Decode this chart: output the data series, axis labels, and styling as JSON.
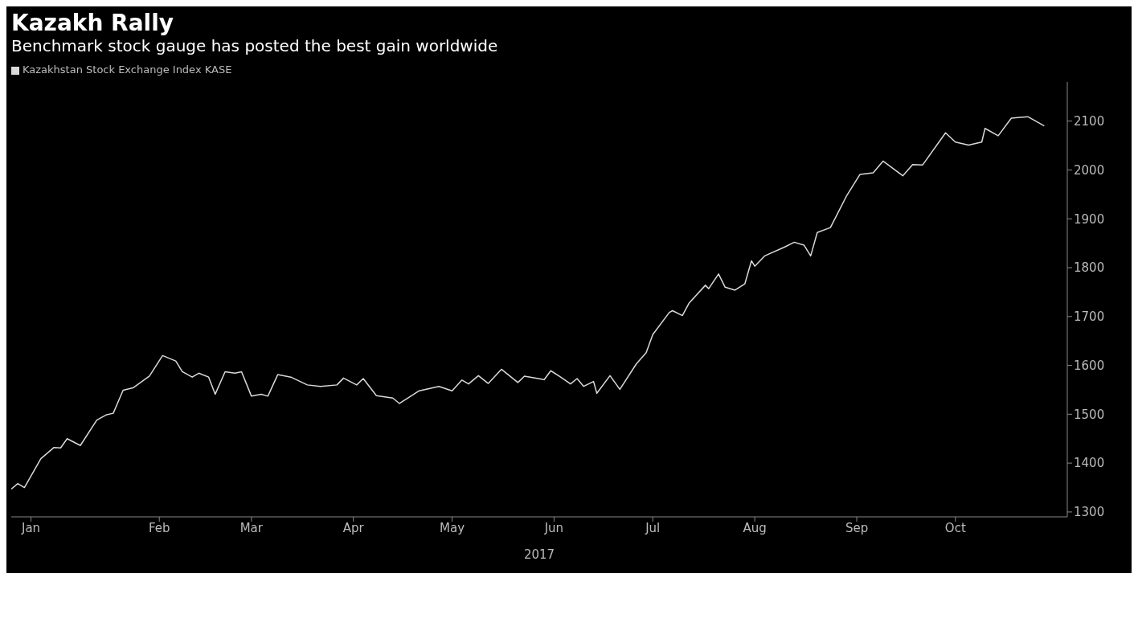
{
  "chart_data": {
    "type": "line",
    "title": "Kazakh Rally",
    "subtitle": "Benchmark stock gauge has posted the best gain worldwide",
    "xlabel": "2017",
    "x": [
      "2017-01-01",
      "2017-01-03",
      "2017-01-05",
      "2017-01-10",
      "2017-01-14",
      "2017-01-16",
      "2017-01-18",
      "2017-01-22",
      "2017-01-27",
      "2017-01-30",
      "2017-02-01",
      "2017-02-04",
      "2017-02-07",
      "2017-02-12",
      "2017-02-16",
      "2017-02-20",
      "2017-02-22",
      "2017-02-25",
      "2017-02-27",
      "2017-03-02",
      "2017-03-04",
      "2017-03-07",
      "2017-03-10",
      "2017-03-12",
      "2017-03-15",
      "2017-03-18",
      "2017-03-20",
      "2017-03-23",
      "2017-03-27",
      "2017-04-01",
      "2017-04-05",
      "2017-04-10",
      "2017-04-12",
      "2017-04-16",
      "2017-04-18",
      "2017-04-22",
      "2017-04-27",
      "2017-04-29",
      "2017-05-05",
      "2017-05-11",
      "2017-05-15",
      "2017-05-18",
      "2017-05-20",
      "2017-05-23",
      "2017-05-26",
      "2017-05-30",
      "2017-06-04",
      "2017-06-06",
      "2017-06-12",
      "2017-06-14",
      "2017-06-17",
      "2017-06-20",
      "2017-06-22",
      "2017-06-24",
      "2017-06-27",
      "2017-06-28",
      "2017-07-02",
      "2017-07-05",
      "2017-07-10",
      "2017-07-13",
      "2017-07-15",
      "2017-07-20",
      "2017-07-21",
      "2017-07-24",
      "2017-07-26",
      "2017-07-31",
      "2017-08-01",
      "2017-08-04",
      "2017-08-06",
      "2017-08-09",
      "2017-08-12",
      "2017-08-14",
      "2017-08-15",
      "2017-08-18",
      "2017-08-24",
      "2017-08-27",
      "2017-08-30",
      "2017-09-01",
      "2017-09-03",
      "2017-09-07",
      "2017-09-12",
      "2017-09-16",
      "2017-09-20",
      "2017-09-23",
      "2017-09-29",
      "2017-10-02",
      "2017-10-05",
      "2017-10-12",
      "2017-10-15",
      "2017-10-19",
      "2017-10-23",
      "2017-10-24",
      "2017-10-28",
      "2017-11-01",
      "2017-11-06",
      "2017-11-11"
    ],
    "series": [
      {
        "name": "Kazakhstan Stock Exchange Index KASE",
        "color": "#d9d9d9",
        "values": [
          1347,
          1358,
          1350,
          1409,
          1432,
          1431,
          1450,
          1436,
          1488,
          1499,
          1502,
          1549,
          1554,
          1578,
          1620,
          1609,
          1587,
          1576,
          1584,
          1576,
          1541,
          1587,
          1584,
          1587,
          1537,
          1541,
          1537,
          1581,
          1576,
          1560,
          1557,
          1560,
          1574,
          1560,
          1573,
          1538,
          1533,
          1522,
          1548,
          1557,
          1548,
          1570,
          1562,
          1579,
          1563,
          1592,
          1565,
          1578,
          1571,
          1589,
          1576,
          1562,
          1573,
          1557,
          1567,
          1543,
          1579,
          1551,
          1603,
          1626,
          1663,
          1708,
          1712,
          1702,
          1727,
          1764,
          1757,
          1787,
          1760,
          1754,
          1767,
          1814,
          1803,
          1824,
          1842,
          1852,
          1846,
          1824,
          1872,
          1882,
          1948,
          1991,
          1994,
          2018,
          1988,
          2011,
          2010,
          2076,
          2057,
          2051,
          2057,
          2085,
          2070,
          2106,
          2109,
          2090
        ]
      }
    ],
    "xlim": [
      "2017-01-01",
      "2017-11-18"
    ],
    "xticks": [
      {
        "value": "2017-01-07",
        "label": "Jan"
      },
      {
        "value": "2017-02-15",
        "label": "Feb"
      },
      {
        "value": "2017-03-15",
        "label": "Mar"
      },
      {
        "value": "2017-04-15",
        "label": "Apr"
      },
      {
        "value": "2017-05-15",
        "label": "May"
      },
      {
        "value": "2017-06-15",
        "label": "Jun"
      },
      {
        "value": "2017-07-15",
        "label": "Jul"
      },
      {
        "value": "2017-08-15",
        "label": "Aug"
      },
      {
        "value": "2017-09-15",
        "label": "Sep"
      },
      {
        "value": "2017-10-15",
        "label": "Oct"
      }
    ],
    "ylim": [
      1290,
      2180
    ],
    "yticks": [
      1300,
      1400,
      1500,
      1600,
      1700,
      1800,
      1900,
      2000,
      2100
    ],
    "legend": "top left",
    "grid": false,
    "marker": "none",
    "line_style": "solid"
  }
}
